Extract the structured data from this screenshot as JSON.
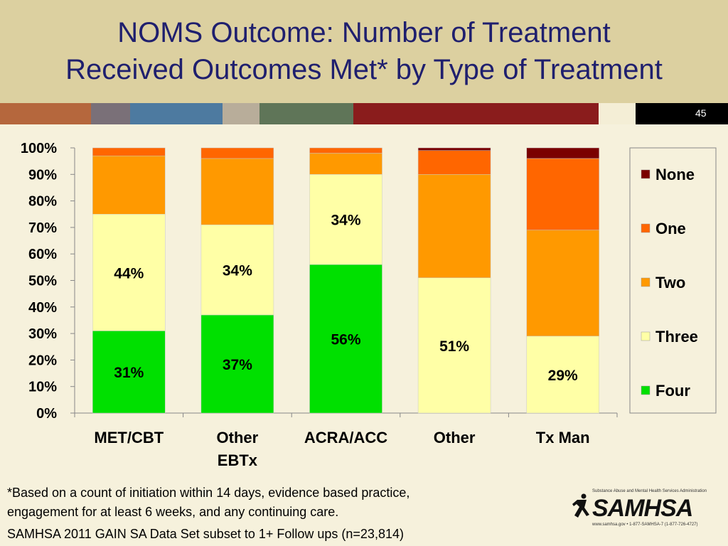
{
  "slide": {
    "title": "NOMS Outcome: Number of Treatment\nReceived Outcomes Met* by Type of Treatment",
    "slide_number": "45",
    "footnote": "*Based on a count of initiation within 14 days, evidence based practice,\nengagement for at least 6 weeks, and any continuing care.",
    "source": "SAMHSA 2011 GAIN SA Data Set subset to 1+ Follow ups (n=23,814)",
    "logo_text": "SAMHSA",
    "logo_tagline": "Substance Abuse and Mental Health Services Administration",
    "logo_contact": "www.samhsa.gov • 1-877-SAMHSA-7 (1-877-726-4727)",
    "color_bar": [
      "#b5673d",
      "#7a7078",
      "#4d7aa0",
      "#b8ad9a",
      "#5f7558",
      "#8a1c1c",
      "#f4eed6",
      "#000000"
    ]
  },
  "chart_data": {
    "type": "bar",
    "stacked": true,
    "categories": [
      "MET/CBT",
      "Other\nEBTx",
      "ACRA/ACC",
      "Other",
      "Tx Man"
    ],
    "series": [
      {
        "name": "Four",
        "color": "#00e000",
        "values": [
          31,
          37,
          56,
          0,
          0
        ]
      },
      {
        "name": "Three",
        "color": "#ffffa6",
        "values": [
          44,
          34,
          34,
          51,
          29
        ]
      },
      {
        "name": "Two",
        "color": "#ff9900",
        "values": [
          22,
          25,
          8,
          39,
          40
        ]
      },
      {
        "name": "One",
        "color": "#ff6600",
        "values": [
          3,
          4,
          2,
          9,
          27
        ]
      },
      {
        "name": "None",
        "color": "#7a0000",
        "values": [
          0,
          0,
          0,
          1,
          4
        ]
      }
    ],
    "data_labels": [
      {
        "category": 0,
        "series": "Four",
        "text": "31%"
      },
      {
        "category": 0,
        "series": "Three",
        "text": "44%"
      },
      {
        "category": 1,
        "series": "Four",
        "text": "37%"
      },
      {
        "category": 1,
        "series": "Three",
        "text": "34%"
      },
      {
        "category": 2,
        "series": "Four",
        "text": "56%"
      },
      {
        "category": 2,
        "series": "Three",
        "text": "34%"
      },
      {
        "category": 3,
        "series": "Three",
        "text": "51%"
      },
      {
        "category": 4,
        "series": "Three",
        "text": "29%"
      }
    ],
    "ylim": [
      0,
      100
    ],
    "yticks": [
      "0%",
      "10%",
      "20%",
      "30%",
      "40%",
      "50%",
      "60%",
      "70%",
      "80%",
      "90%",
      "100%"
    ],
    "legend_order": [
      "None",
      "One",
      "Two",
      "Three",
      "Four"
    ],
    "legend_position": "right",
    "grid": false
  }
}
